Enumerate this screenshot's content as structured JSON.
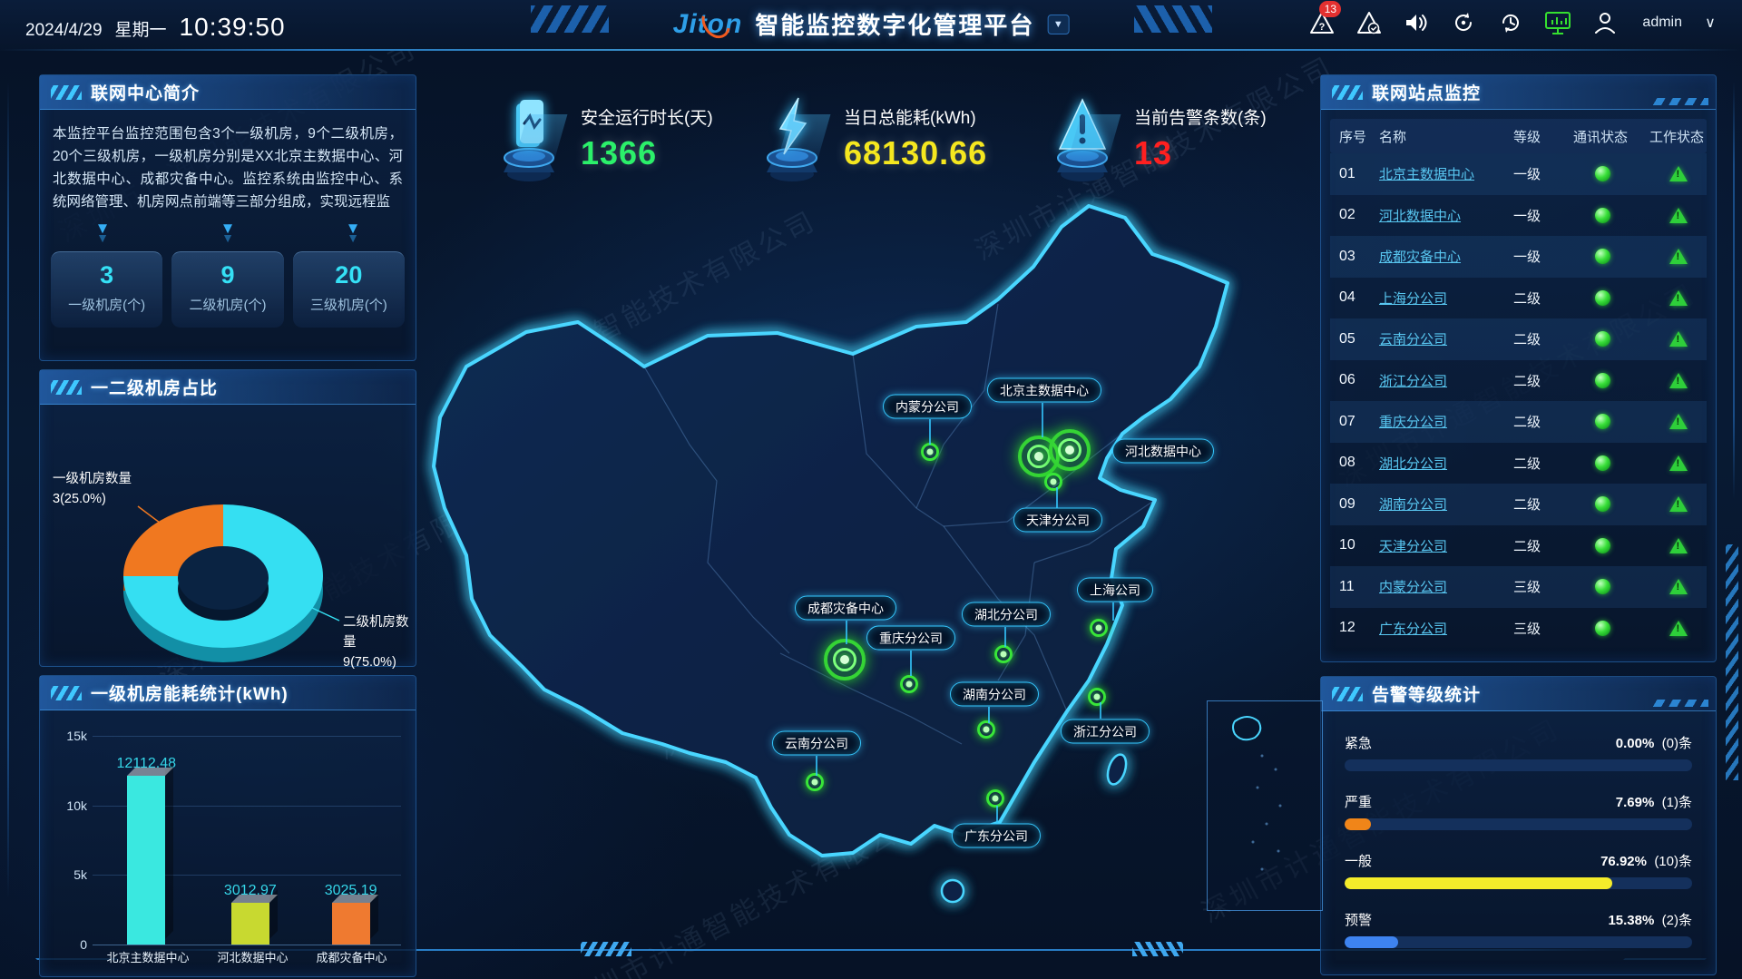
{
  "watermark": "深圳市计通智能技术有限公司",
  "header": {
    "date": "2024/4/29",
    "weekday": "星期一",
    "time": "10:39:50",
    "logo": "Jiton",
    "title": "智能监控数字化管理平台",
    "caret": "▼",
    "alarm_badge": "13",
    "username": "admin",
    "user_caret": "∨"
  },
  "kpis": [
    {
      "icon": "runtime-monitor-icon",
      "label": "安全运行时长(天)",
      "value": "1366",
      "color": "#2bf06a"
    },
    {
      "icon": "lightning-icon",
      "label": "当日总能耗(kWh)",
      "value": "68130.66",
      "color": "#f5e71f"
    },
    {
      "icon": "alert-triangle-icon",
      "label": "当前告警条数(条)",
      "value": "13",
      "color": "#ff2020"
    }
  ],
  "intro_panel": {
    "title": "联网中心简介",
    "text": "本监控平台监控范围包含3个一级机房，9个二级机房，20个三级机房，一级机房分别是XX北京主数据中心、河北数据中心、成都灾备中心。监控系统由监控中心、系统网络管理、机房网点前端等三部分组成，实现远程监",
    "stats": [
      {
        "value": "3",
        "label": "一级机房(个)"
      },
      {
        "value": "9",
        "label": "二级机房(个)"
      },
      {
        "value": "20",
        "label": "三级机房(个)"
      }
    ]
  },
  "donut_panel": {
    "title": "一二级机房占比",
    "label1_line1": "一级机房数量",
    "label1_line2": "3(25.0%)",
    "label2_line1": "二级机房数量",
    "label2_line2": "9(75.0%)"
  },
  "energy_panel": {
    "title": "一级机房能耗统计(kWh)",
    "yticks": [
      "15k",
      "10k",
      "5k",
      "0"
    ]
  },
  "map": {
    "labels": [
      {
        "text": "内蒙分公司"
      },
      {
        "text": "北京主数据中心"
      },
      {
        "text": "河北数据中心"
      },
      {
        "text": "天津分公司"
      },
      {
        "text": "上海公司"
      },
      {
        "text": "成都灾备中心"
      },
      {
        "text": "湖北分公司"
      },
      {
        "text": "重庆分公司"
      },
      {
        "text": "湖南分公司"
      },
      {
        "text": "浙江分公司"
      },
      {
        "text": "云南分公司"
      },
      {
        "text": "广东分公司"
      }
    ]
  },
  "sites_panel": {
    "title": "联网站点监控",
    "columns": [
      "序号",
      "名称",
      "等级",
      "通讯状态",
      "工作状态"
    ],
    "rows": [
      {
        "no": "01",
        "name": "北京主数据中心",
        "level": "一级"
      },
      {
        "no": "02",
        "name": "河北数据中心",
        "level": "一级"
      },
      {
        "no": "03",
        "name": "成都灾备中心",
        "level": "一级"
      },
      {
        "no": "04",
        "name": "上海分公司",
        "level": "二级"
      },
      {
        "no": "05",
        "name": "云南分公司",
        "level": "二级"
      },
      {
        "no": "06",
        "name": "浙江分公司",
        "level": "二级"
      },
      {
        "no": "07",
        "name": "重庆分公司",
        "level": "二级"
      },
      {
        "no": "08",
        "name": "湖北分公司",
        "level": "二级"
      },
      {
        "no": "09",
        "name": "湖南分公司",
        "level": "二级"
      },
      {
        "no": "10",
        "name": "天津分公司",
        "level": "二级"
      },
      {
        "no": "11",
        "name": "内蒙分公司",
        "level": "三级"
      },
      {
        "no": "12",
        "name": "广东分公司",
        "level": "三级"
      }
    ]
  },
  "alarm_panel": {
    "title": "告警等级统计",
    "items": [
      {
        "label": "紧急",
        "percent": "0.00%",
        "count": "(0)条"
      },
      {
        "label": "严重",
        "percent": "7.69%",
        "count": "(1)条"
      },
      {
        "label": "一般",
        "percent": "76.92%",
        "count": "(10)条"
      },
      {
        "label": "预警",
        "percent": "15.38%",
        "count": "(2)条"
      }
    ]
  },
  "chart_data": [
    {
      "type": "pie",
      "title": "一二级机房占比",
      "labels": [
        "一级机房数量",
        "二级机房数量"
      ],
      "values": [
        3,
        9
      ],
      "percents": [
        "25.0%",
        "75.0%"
      ],
      "colors": [
        "#f07820",
        "#35dff2"
      ],
      "colors_dark": [
        "#a34c0e",
        "#128fa6"
      ],
      "legend_position": "callout-labels",
      "donut": true
    },
    {
      "type": "bar",
      "title": "一级机房能耗统计(kWh)",
      "categories": [
        "北京主数据中心",
        "河北数据中心",
        "成都灾备中心"
      ],
      "values": [
        12112.48,
        3012.97,
        3025.19
      ],
      "colors": [
        "#3ae8e0",
        "#c8d930",
        "#ef7a30"
      ],
      "xlabel": "",
      "ylabel": "kWh",
      "ylim": [
        0,
        15000
      ],
      "yticks_labels": [
        "0",
        "5k",
        "10k",
        "15k"
      ],
      "grid": true
    },
    {
      "type": "bar",
      "title": "告警等级统计",
      "categories": [
        "紧急",
        "严重",
        "一般",
        "预警"
      ],
      "values": [
        0,
        7.69,
        76.92,
        15.38
      ],
      "counts": [
        0,
        1,
        10,
        2
      ],
      "colors": [
        "#14305c",
        "#f08519",
        "#f4ec2a",
        "#3e83f0"
      ],
      "orientation": "horizontal",
      "xlim": [
        0,
        100
      ]
    }
  ]
}
